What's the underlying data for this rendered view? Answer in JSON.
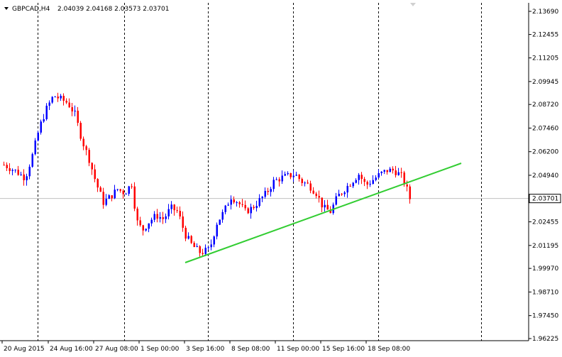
{
  "header": {
    "symbol": "GBPCAD,H4",
    "ohlc": "2.04039 2.04168 2.03573 2.03701"
  },
  "colors": {
    "bull": "#0000ff",
    "bear": "#ff0000",
    "wick": "#000000",
    "trendline": "#32cd32",
    "grid": "#000000",
    "price_line": "#c0c0c0"
  },
  "chart_data": {
    "type": "candlestick",
    "instrument": "GBPCAD",
    "timeframe": "H4",
    "y_ticks": [
      "2.13690",
      "2.12455",
      "2.11205",
      "2.09945",
      "2.08720",
      "2.07460",
      "2.06200",
      "2.04940",
      "2.03701",
      "2.02455",
      "2.01195",
      "1.99970",
      "1.98710",
      "1.97450",
      "1.96225"
    ],
    "x_ticks": [
      "20 Aug 2015",
      "24 Aug 16:00",
      "27 Aug 08:00",
      "1 Sep 00:00",
      "3 Sep 16:00",
      "8 Sep 08:00",
      "11 Sep 00:00",
      "15 Sep 16:00",
      "18 Sep 08:00"
    ],
    "ylim": [
      1.96225,
      2.1369
    ],
    "current_price": "2.03701",
    "trendline": {
      "start": [
        0,
        2.002
      ],
      "end": [
        100,
        2.055
      ]
    },
    "grid": "vertical dashed",
    "candles": []
  }
}
